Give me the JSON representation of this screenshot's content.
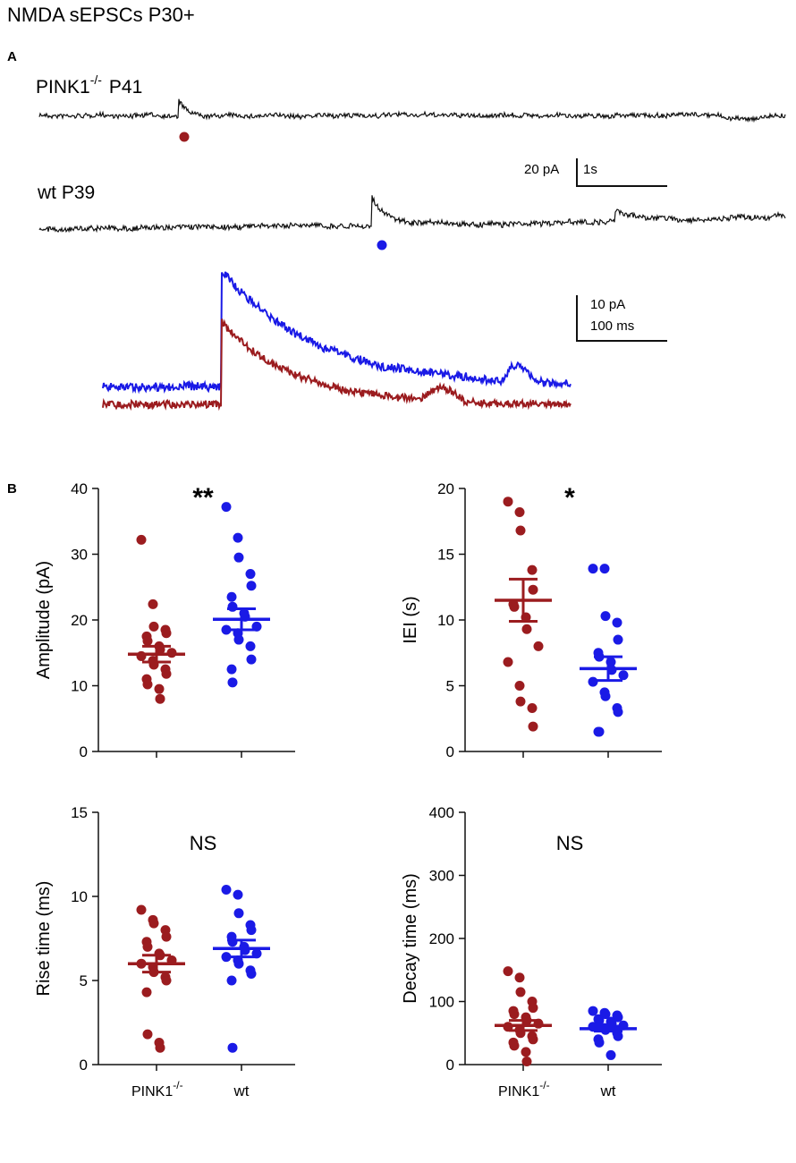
{
  "title": "NMDA sEPSCs P30+",
  "colors": {
    "pink1": "#9b1c1f",
    "wt": "#1a1ae6",
    "axis": "#111111"
  },
  "panel_a": {
    "label": "A",
    "trace1_label": "PINK1",
    "trace1_sup": "-/-",
    "trace1_age": "P41",
    "trace2_label": "wt P39",
    "scalebar1_y": "20 pA",
    "scalebar1_x": "1s",
    "scalebar2_y": "10 pA",
    "scalebar2_x": "100 ms"
  },
  "panel_b": {
    "label": "B",
    "x_label_pink1": "PINK1",
    "x_label_pink1_sup": "-/-",
    "x_label_wt": "wt"
  },
  "chart_data": [
    {
      "type": "scatter",
      "title": "Amplitude",
      "ylabel": "Amplitude (pA)",
      "ylim": [
        0,
        40
      ],
      "yticks": [
        0,
        10,
        20,
        30,
        40
      ],
      "categories": [
        "PINK1-/-",
        "wt"
      ],
      "significance": "**",
      "series": [
        {
          "name": "PINK1-/-",
          "mean": 14.8,
          "sem": 1.2,
          "values": [
            32.2,
            22.4,
            19.0,
            18.5,
            18.0,
            17.5,
            16.8,
            16.0,
            15.5,
            15.0,
            14.5,
            13.8,
            13.2,
            12.5,
            11.8,
            11.0,
            10.2,
            9.5,
            8.0
          ]
        },
        {
          "name": "wt",
          "mean": 20.1,
          "sem": 1.6,
          "values": [
            37.2,
            32.5,
            29.5,
            27.0,
            25.2,
            23.5,
            22.0,
            21.0,
            20.5,
            19.0,
            18.5,
            18.0,
            17.0,
            16.0,
            14.0,
            12.5,
            10.5
          ]
        }
      ]
    },
    {
      "type": "scatter",
      "title": "IEI",
      "ylabel": "IEI (s)",
      "ylim": [
        0,
        20
      ],
      "yticks": [
        0,
        5,
        10,
        15,
        20
      ],
      "categories": [
        "PINK1-/-",
        "wt"
      ],
      "significance": "*",
      "series": [
        {
          "name": "PINK1-/-",
          "mean": 11.5,
          "sem": 1.6,
          "values": [
            19.0,
            18.2,
            16.8,
            13.8,
            12.3,
            11.2,
            11.0,
            10.2,
            9.3,
            8.0,
            6.8,
            5.0,
            3.8,
            3.3,
            1.9
          ]
        },
        {
          "name": "wt",
          "mean": 6.3,
          "sem": 0.9,
          "values": [
            13.9,
            13.9,
            10.3,
            9.8,
            8.5,
            7.5,
            7.2,
            6.8,
            6.2,
            5.8,
            5.3,
            4.5,
            4.2,
            3.3,
            3.0,
            1.5,
            1.5
          ]
        }
      ]
    },
    {
      "type": "scatter",
      "title": "Rise time",
      "ylabel": "Rise time (ms)",
      "ylim": [
        0,
        15
      ],
      "yticks": [
        0,
        5,
        10,
        15
      ],
      "categories": [
        "PINK1-/-",
        "wt"
      ],
      "significance": "NS",
      "series": [
        {
          "name": "PINK1-/-",
          "mean": 6.0,
          "sem": 0.5,
          "values": [
            9.2,
            8.6,
            8.4,
            8.0,
            7.6,
            7.3,
            7.0,
            6.6,
            6.5,
            6.2,
            6.0,
            5.8,
            5.5,
            5.2,
            5.0,
            4.3,
            1.8,
            1.3,
            1.0
          ]
        },
        {
          "name": "wt",
          "mean": 6.9,
          "sem": 0.5,
          "values": [
            10.4,
            10.1,
            9.0,
            8.3,
            8.0,
            7.6,
            7.3,
            7.0,
            6.8,
            6.6,
            6.4,
            6.2,
            6.0,
            5.6,
            5.4,
            5.0,
            1.0
          ]
        }
      ]
    },
    {
      "type": "scatter",
      "title": "Decay time",
      "ylabel": "Decay time (ms)",
      "ylim": [
        0,
        400
      ],
      "yticks": [
        0,
        100,
        200,
        300,
        400
      ],
      "categories": [
        "PINK1-/-",
        "wt"
      ],
      "significance": "NS",
      "series": [
        {
          "name": "PINK1-/-",
          "mean": 62,
          "sem": 8,
          "values": [
            148,
            138,
            115,
            100,
            90,
            85,
            80,
            75,
            70,
            65,
            60,
            55,
            50,
            45,
            40,
            35,
            30,
            20,
            5
          ]
        },
        {
          "name": "wt",
          "mean": 57,
          "sem": 4,
          "values": [
            85,
            82,
            80,
            78,
            75,
            72,
            70,
            68,
            65,
            62,
            60,
            58,
            55,
            50,
            45,
            40,
            35,
            15
          ]
        }
      ]
    }
  ]
}
